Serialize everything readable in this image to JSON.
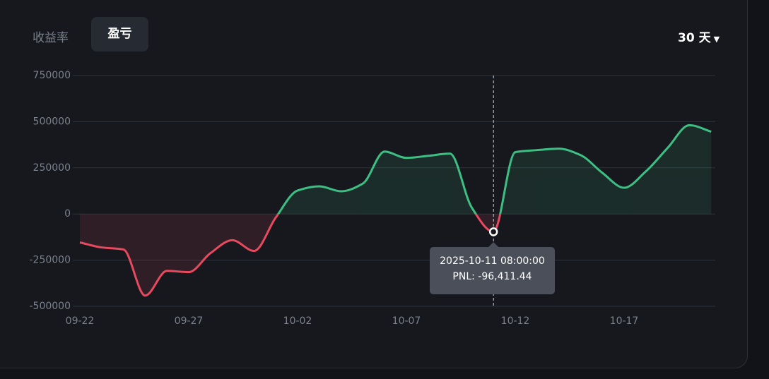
{
  "tabs": [
    "收益率",
    "盈亏"
  ],
  "range_selector": "30 天",
  "chart_data": {
    "type": "line",
    "categories": [
      "09-22",
      null,
      null,
      null,
      null,
      "09-27",
      null,
      null,
      null,
      null,
      "10-02",
      null,
      null,
      null,
      null,
      "10-07",
      null,
      null,
      null,
      null,
      "10-12",
      null,
      null,
      null,
      null,
      "10-17",
      null,
      null,
      null,
      null
    ],
    "series": [
      {
        "name": "PNL",
        "color": "#3dbf84",
        "negative_color": "#e8495f",
        "values": [
          -154000,
          -181000,
          -192000,
          -442000,
          -308000,
          -315000,
          -212000,
          -142000,
          -200000,
          -19000,
          127000,
          150000,
          123000,
          165000,
          338000,
          304000,
          315000,
          327000,
          35000,
          -96411.44,
          335000,
          346000,
          354000,
          319000,
          223000,
          142000,
          231000,
          358000,
          481000,
          446000
        ]
      }
    ],
    "ylim": [
      -500000,
      750000
    ],
    "yticks": [
      750000,
      500000,
      250000,
      0,
      -250000,
      -500000
    ],
    "grid": true,
    "tooltip": {
      "index": 19,
      "title": "2025-10-11 08:00:00",
      "label": "PNL: -96,411.44"
    }
  }
}
